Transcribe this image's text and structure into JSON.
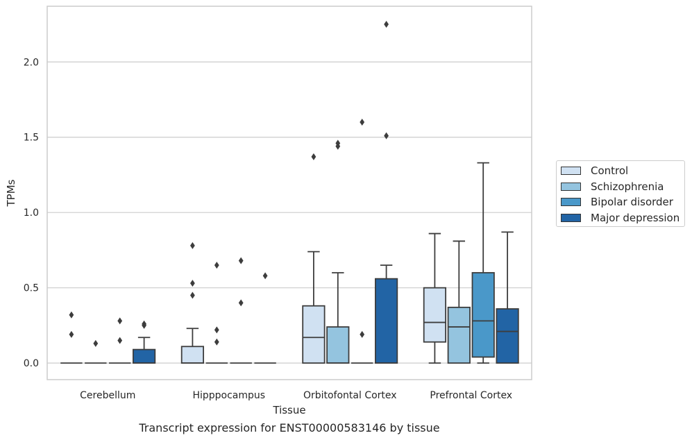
{
  "chart_data": {
    "type": "box",
    "xlabel": "Tissue",
    "ylabel": "TPMs",
    "caption": "Transcript expression for ENST00000583146 by tissue",
    "ylim": [
      -0.11,
      2.37
    ],
    "yticks": [
      0.0,
      0.5,
      1.0,
      1.5,
      2.0
    ],
    "ytick_labels": [
      "0.0",
      "0.5",
      "1.0",
      "1.5",
      "2.0"
    ],
    "grid": "horizontal",
    "legend_position": "right",
    "categories": [
      "Cerebellum",
      "Hipppocampus",
      "Orbitofontal Cortex",
      "Prefrontal Cortex"
    ],
    "series": [
      {
        "name": "Control",
        "color": "#d0e1f2",
        "boxes": [
          {
            "q1": 0,
            "median": 0,
            "q3": 0,
            "whisker_low": 0,
            "whisker_high": 0,
            "outliers": [
              0.32,
              0.19
            ]
          },
          {
            "q1": 0,
            "median": 0,
            "q3": 0.11,
            "whisker_low": 0,
            "whisker_high": 0.23,
            "outliers": [
              0.78,
              0.53,
              0.45
            ]
          },
          {
            "q1": 0,
            "median": 0.17,
            "q3": 0.38,
            "whisker_low": 0,
            "whisker_high": 0.74,
            "outliers": [
              1.37
            ]
          },
          {
            "q1": 0.14,
            "median": 0.27,
            "q3": 0.5,
            "whisker_low": 0,
            "whisker_high": 0.86,
            "outliers": []
          }
        ]
      },
      {
        "name": "Schizophrenia",
        "color": "#94c4df",
        "boxes": [
          {
            "q1": 0,
            "median": 0,
            "q3": 0,
            "whisker_low": 0,
            "whisker_high": 0,
            "outliers": [
              0.13
            ]
          },
          {
            "q1": 0,
            "median": 0,
            "q3": 0,
            "whisker_low": 0,
            "whisker_high": 0,
            "outliers": [
              0.65,
              0.22,
              0.14
            ]
          },
          {
            "q1": 0,
            "median": 0,
            "q3": 0.24,
            "whisker_low": 0,
            "whisker_high": 0.6,
            "outliers": [
              1.46,
              1.44
            ]
          },
          {
            "q1": 0,
            "median": 0.24,
            "q3": 0.37,
            "whisker_low": 0,
            "whisker_high": 0.81,
            "outliers": []
          }
        ]
      },
      {
        "name": "Bipolar disorder",
        "color": "#4a98c9",
        "boxes": [
          {
            "q1": 0,
            "median": 0,
            "q3": 0,
            "whisker_low": 0,
            "whisker_high": 0,
            "outliers": [
              0.28,
              0.15
            ]
          },
          {
            "q1": 0,
            "median": 0,
            "q3": 0,
            "whisker_low": 0,
            "whisker_high": 0,
            "outliers": [
              0.68,
              0.4
            ]
          },
          {
            "q1": 0,
            "median": 0,
            "q3": 0,
            "whisker_low": 0,
            "whisker_high": 0,
            "outliers": [
              0.19,
              1.6
            ]
          },
          {
            "q1": 0.04,
            "median": 0.28,
            "q3": 0.6,
            "whisker_low": 0,
            "whisker_high": 1.33,
            "outliers": []
          }
        ]
      },
      {
        "name": "Major depression",
        "color": "#2264a5",
        "boxes": [
          {
            "q1": 0,
            "median": 0,
            "q3": 0.09,
            "whisker_low": 0,
            "whisker_high": 0.17,
            "outliers": [
              0.26,
              0.25
            ]
          },
          {
            "q1": 0,
            "median": 0,
            "q3": 0,
            "whisker_low": 0,
            "whisker_high": 0,
            "outliers": [
              0.58
            ]
          },
          {
            "q1": 0,
            "median": 0,
            "q3": 0.56,
            "whisker_low": 0,
            "whisker_high": 0.65,
            "outliers": [
              2.25,
              1.51
            ]
          },
          {
            "q1": 0,
            "median": 0.21,
            "q3": 0.36,
            "whisker_low": 0,
            "whisker_high": 0.87,
            "outliers": []
          }
        ]
      }
    ]
  }
}
